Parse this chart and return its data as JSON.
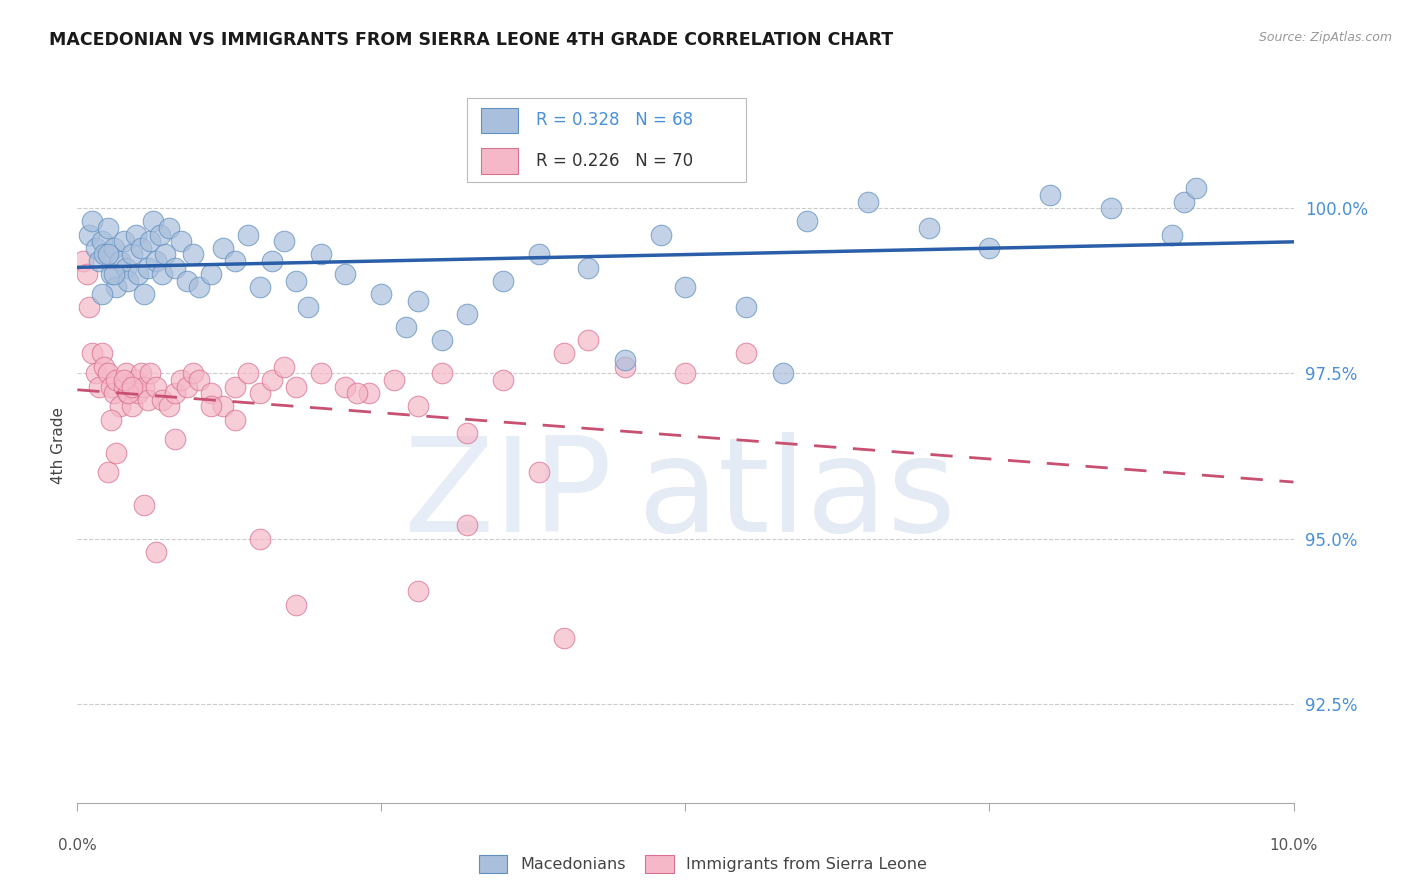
{
  "title": "MACEDONIAN VS IMMIGRANTS FROM SIERRA LEONE 4TH GRADE CORRELATION CHART",
  "source": "Source: ZipAtlas.com",
  "ylabel": "4th Grade",
  "y_ticks": [
    92.5,
    95.0,
    97.5,
    100.0
  ],
  "y_tick_labels": [
    "92.5%",
    "95.0%",
    "97.5%",
    "100.0%"
  ],
  "x_range": [
    0.0,
    10.0
  ],
  "y_range": [
    91.0,
    101.8
  ],
  "blue_R": 0.328,
  "blue_N": 68,
  "pink_R": 0.226,
  "pink_N": 70,
  "blue_fill": "#AABFDC",
  "pink_fill": "#F5B8C8",
  "blue_edge": "#6090C0",
  "pink_edge": "#D87090",
  "blue_line": "#2B5EA8",
  "pink_line": "#C85070",
  "grid_color": "#CCCCCC",
  "tick_color": "#4A90D9",
  "title_color": "#1A1A1A",
  "source_color": "#999999",
  "bottom_label_color": "#555555",
  "blue_x": [
    0.1,
    0.12,
    0.15,
    0.18,
    0.2,
    0.22,
    0.25,
    0.28,
    0.3,
    0.32,
    0.35,
    0.38,
    0.4,
    0.42,
    0.45,
    0.48,
    0.5,
    0.52,
    0.55,
    0.58,
    0.6,
    0.62,
    0.65,
    0.68,
    0.7,
    0.72,
    0.75,
    0.8,
    0.85,
    0.9,
    0.95,
    1.0,
    1.1,
    1.2,
    1.3,
    1.4,
    1.5,
    1.6,
    1.7,
    1.8,
    2.0,
    2.2,
    2.5,
    2.8,
    3.2,
    3.5,
    3.8,
    4.2,
    4.8,
    5.0,
    5.5,
    6.0,
    6.5,
    7.0,
    7.5,
    8.0,
    8.5,
    9.0,
    9.1,
    9.2,
    0.3,
    0.25,
    0.2,
    1.9,
    2.7,
    3.0,
    4.5,
    5.8
  ],
  "blue_y": [
    99.6,
    99.8,
    99.4,
    99.2,
    99.5,
    99.3,
    99.7,
    99.0,
    99.4,
    98.8,
    99.2,
    99.5,
    99.1,
    98.9,
    99.3,
    99.6,
    99.0,
    99.4,
    98.7,
    99.1,
    99.5,
    99.8,
    99.2,
    99.6,
    99.0,
    99.3,
    99.7,
    99.1,
    99.5,
    98.9,
    99.3,
    98.8,
    99.0,
    99.4,
    99.2,
    99.6,
    98.8,
    99.2,
    99.5,
    98.9,
    99.3,
    99.0,
    98.7,
    98.6,
    98.4,
    98.9,
    99.3,
    99.1,
    99.6,
    98.8,
    98.5,
    99.8,
    100.1,
    99.7,
    99.4,
    100.2,
    100.0,
    99.6,
    100.1,
    100.3,
    99.0,
    99.3,
    98.7,
    98.5,
    98.2,
    98.0,
    97.7,
    97.5
  ],
  "pink_x": [
    0.05,
    0.08,
    0.1,
    0.12,
    0.15,
    0.18,
    0.2,
    0.22,
    0.25,
    0.28,
    0.3,
    0.32,
    0.35,
    0.38,
    0.4,
    0.42,
    0.45,
    0.48,
    0.5,
    0.52,
    0.55,
    0.58,
    0.6,
    0.65,
    0.7,
    0.75,
    0.8,
    0.85,
    0.9,
    0.95,
    1.0,
    1.1,
    1.2,
    1.3,
    1.4,
    1.5,
    1.6,
    1.7,
    1.8,
    2.0,
    2.2,
    2.4,
    2.6,
    3.0,
    3.5,
    4.0,
    4.2,
    4.5,
    5.0,
    5.5,
    0.42,
    0.38,
    0.45,
    1.1,
    1.3,
    0.8,
    0.25,
    0.32,
    2.3,
    2.8,
    3.2,
    3.8,
    0.65,
    3.2,
    0.28,
    0.55,
    1.5,
    2.8,
    1.8,
    4.0
  ],
  "pink_y": [
    99.2,
    99.0,
    98.5,
    97.8,
    97.5,
    97.3,
    97.8,
    97.6,
    97.5,
    97.3,
    97.2,
    97.4,
    97.0,
    97.3,
    97.5,
    97.2,
    97.0,
    97.4,
    97.2,
    97.5,
    97.3,
    97.1,
    97.5,
    97.3,
    97.1,
    97.0,
    97.2,
    97.4,
    97.3,
    97.5,
    97.4,
    97.2,
    97.0,
    97.3,
    97.5,
    97.2,
    97.4,
    97.6,
    97.3,
    97.5,
    97.3,
    97.2,
    97.4,
    97.5,
    97.4,
    97.8,
    98.0,
    97.6,
    97.5,
    97.8,
    97.2,
    97.4,
    97.3,
    97.0,
    96.8,
    96.5,
    96.0,
    96.3,
    97.2,
    97.0,
    96.6,
    96.0,
    94.8,
    95.2,
    96.8,
    95.5,
    95.0,
    94.2,
    94.0,
    93.5
  ]
}
